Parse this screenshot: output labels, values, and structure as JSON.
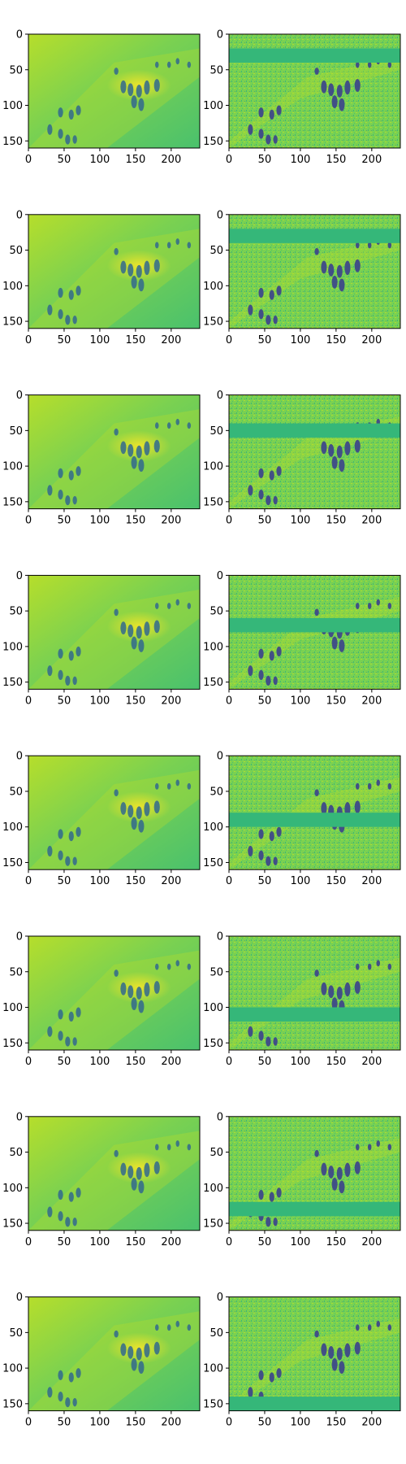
{
  "figure": {
    "background": "#ffffff",
    "colormap": "viridis",
    "layout": {
      "rows": 8,
      "cols": 2
    }
  },
  "chart_data": [
    {
      "type": "heatmap",
      "row": 1,
      "col": 1,
      "kind": "reconstruction",
      "masked_band": null,
      "xlim": [
        0,
        240
      ],
      "ylim": [
        160,
        0
      ],
      "xticks": [
        0,
        50,
        100,
        150,
        200
      ],
      "yticks": [
        0,
        50,
        100,
        150
      ]
    },
    {
      "type": "heatmap",
      "row": 1,
      "col": 2,
      "kind": "masked-input",
      "masked_band": [
        20,
        40
      ],
      "xlim": [
        0,
        240
      ],
      "ylim": [
        160,
        0
      ],
      "xticks": [
        0,
        50,
        100,
        150,
        200
      ],
      "yticks": [
        0,
        50,
        100,
        150
      ]
    },
    {
      "type": "heatmap",
      "row": 2,
      "col": 1,
      "kind": "reconstruction",
      "masked_band": null,
      "xlim": [
        0,
        240
      ],
      "ylim": [
        160,
        0
      ],
      "xticks": [
        0,
        50,
        100,
        150,
        200
      ],
      "yticks": [
        0,
        50,
        100,
        150
      ]
    },
    {
      "type": "heatmap",
      "row": 2,
      "col": 2,
      "kind": "masked-input",
      "masked_band": [
        20,
        40
      ],
      "xlim": [
        0,
        240
      ],
      "ylim": [
        160,
        0
      ],
      "xticks": [
        0,
        50,
        100,
        150,
        200
      ],
      "yticks": [
        0,
        50,
        100,
        150
      ]
    },
    {
      "type": "heatmap",
      "row": 3,
      "col": 1,
      "kind": "reconstruction",
      "masked_band": null,
      "xlim": [
        0,
        240
      ],
      "ylim": [
        160,
        0
      ],
      "xticks": [
        0,
        50,
        100,
        150,
        200
      ],
      "yticks": [
        0,
        50,
        100,
        150
      ]
    },
    {
      "type": "heatmap",
      "row": 3,
      "col": 2,
      "kind": "masked-input",
      "masked_band": [
        40,
        60
      ],
      "xlim": [
        0,
        240
      ],
      "ylim": [
        160,
        0
      ],
      "xticks": [
        0,
        50,
        100,
        150,
        200
      ],
      "yticks": [
        0,
        50,
        100,
        150
      ]
    },
    {
      "type": "heatmap",
      "row": 4,
      "col": 1,
      "kind": "reconstruction",
      "masked_band": null,
      "xlim": [
        0,
        240
      ],
      "ylim": [
        160,
        0
      ],
      "xticks": [
        0,
        50,
        100,
        150,
        200
      ],
      "yticks": [
        0,
        50,
        100,
        150
      ]
    },
    {
      "type": "heatmap",
      "row": 4,
      "col": 2,
      "kind": "masked-input",
      "masked_band": [
        60,
        80
      ],
      "xlim": [
        0,
        240
      ],
      "ylim": [
        160,
        0
      ],
      "xticks": [
        0,
        50,
        100,
        150,
        200
      ],
      "yticks": [
        0,
        50,
        100,
        150
      ]
    },
    {
      "type": "heatmap",
      "row": 5,
      "col": 1,
      "kind": "reconstruction",
      "masked_band": null,
      "xlim": [
        0,
        240
      ],
      "ylim": [
        160,
        0
      ],
      "xticks": [
        0,
        50,
        100,
        150,
        200
      ],
      "yticks": [
        0,
        50,
        100,
        150
      ]
    },
    {
      "type": "heatmap",
      "row": 5,
      "col": 2,
      "kind": "masked-input",
      "masked_band": [
        80,
        100
      ],
      "xlim": [
        0,
        240
      ],
      "ylim": [
        160,
        0
      ],
      "xticks": [
        0,
        50,
        100,
        150,
        200
      ],
      "yticks": [
        0,
        50,
        100,
        150
      ]
    },
    {
      "type": "heatmap",
      "row": 6,
      "col": 1,
      "kind": "reconstruction",
      "masked_band": null,
      "xlim": [
        0,
        240
      ],
      "ylim": [
        160,
        0
      ],
      "xticks": [
        0,
        50,
        100,
        150,
        200
      ],
      "yticks": [
        0,
        50,
        100,
        150
      ]
    },
    {
      "type": "heatmap",
      "row": 6,
      "col": 2,
      "kind": "masked-input",
      "masked_band": [
        100,
        120
      ],
      "xlim": [
        0,
        240
      ],
      "ylim": [
        160,
        0
      ],
      "xticks": [
        0,
        50,
        100,
        150,
        200
      ],
      "yticks": [
        0,
        50,
        100,
        150
      ]
    },
    {
      "type": "heatmap",
      "row": 7,
      "col": 1,
      "kind": "reconstruction",
      "masked_band": null,
      "xlim": [
        0,
        240
      ],
      "ylim": [
        160,
        0
      ],
      "xticks": [
        0,
        50,
        100,
        150,
        200
      ],
      "yticks": [
        0,
        50,
        100,
        150
      ]
    },
    {
      "type": "heatmap",
      "row": 7,
      "col": 2,
      "kind": "masked-input",
      "masked_band": [
        120,
        140
      ],
      "xlim": [
        0,
        240
      ],
      "ylim": [
        160,
        0
      ],
      "xticks": [
        0,
        50,
        100,
        150,
        200
      ],
      "yticks": [
        0,
        50,
        100,
        150
      ]
    },
    {
      "type": "heatmap",
      "row": 8,
      "col": 1,
      "kind": "reconstruction",
      "masked_band": null,
      "xlim": [
        0,
        240
      ],
      "ylim": [
        160,
        0
      ],
      "xticks": [
        0,
        50,
        100,
        150,
        200
      ],
      "yticks": [
        0,
        50,
        100,
        150
      ]
    },
    {
      "type": "heatmap",
      "row": 8,
      "col": 2,
      "kind": "masked-input",
      "masked_band": [
        140,
        160
      ],
      "xlim": [
        0,
        240
      ],
      "ylim": [
        160,
        0
      ],
      "xticks": [
        0,
        50,
        100,
        150,
        200
      ],
      "yticks": [
        0,
        50,
        100,
        150
      ]
    }
  ],
  "colors": {
    "field_yellow_green": "#b6de2b",
    "field_green": "#7ad151",
    "field_teal_green": "#4ac16d",
    "mask_fill": "#35b779",
    "figure_dark": "#31688e",
    "figure_darkest": "#3e4989",
    "highlight_yellow": "#fde725",
    "axis_frame": "#000000"
  }
}
